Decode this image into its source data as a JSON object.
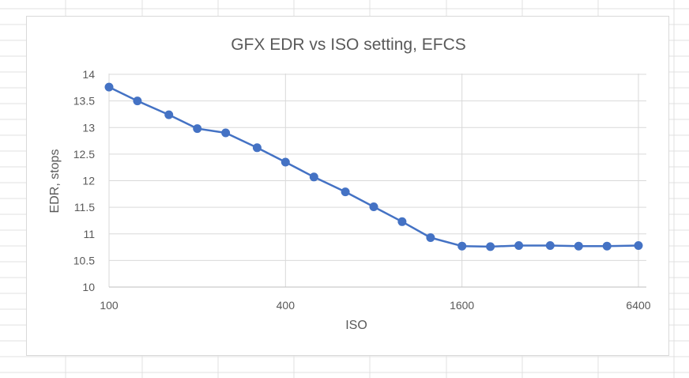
{
  "chart_data": {
    "type": "line",
    "title": "GFX EDR vs ISO setting, EFCS",
    "xlabel": "ISO",
    "ylabel": "EDR, stops",
    "x_scale": "log2",
    "xlim": [
      100,
      6400
    ],
    "ylim": [
      10,
      14
    ],
    "x_ticks": [
      "100",
      "400",
      "1600",
      "6400"
    ],
    "y_ticks": [
      "10",
      "10.5",
      "11",
      "11.5",
      "12",
      "12.5",
      "13",
      "13.5",
      "14"
    ],
    "grid": true,
    "legend": "none",
    "series_color": "#4472c4",
    "series": [
      {
        "x": [
          100,
          125,
          160,
          200,
          250,
          320,
          400,
          500,
          640,
          800,
          1000,
          1250,
          1600,
          2000,
          2500,
          3200,
          4000,
          5000,
          6400
        ],
        "values": [
          13.76,
          13.5,
          13.24,
          12.98,
          12.9,
          12.62,
          12.35,
          12.07,
          11.79,
          11.51,
          11.23,
          10.93,
          10.77,
          10.76,
          10.78,
          10.78,
          10.77,
          10.77,
          10.78
        ]
      }
    ]
  }
}
